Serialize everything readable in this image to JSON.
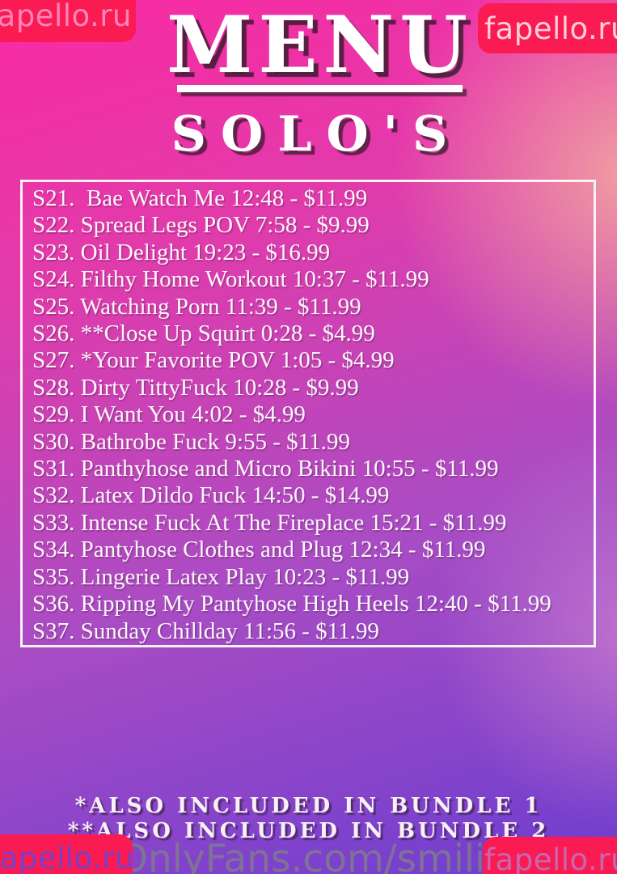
{
  "watermarks": {
    "badge_label": "fapello.ru",
    "bottom_center": "OnlyFans.com/smilingc"
  },
  "header": {
    "title": "MENU",
    "subtitle": "SOLO'S"
  },
  "menu": {
    "items": [
      "S21.  Bae Watch Me 12:48 - $11.99",
      "S22. Spread Legs POV 7:58 - $9.99",
      "S23. Oil Delight 19:23 - $16.99",
      "S24. Filthy Home Workout 10:37 - $11.99",
      "S25. Watching Porn 11:39 - $11.99",
      "S26. **Close Up Squirt 0:28 - $4.99",
      "S27. *Your Favorite POV 1:05 - $4.99",
      "S28. Dirty TittyFuck 10:28 - $9.99",
      "S29. I Want You 4:02 - $4.99",
      "S30. Bathrobe Fuck 9:55 - $11.99",
      "S31. Panthyhose and Micro Bikini 10:55 - $11.99",
      "S32. Latex Dildo Fuck 14:50 - $14.99",
      "S33. Intense Fuck At The Fireplace 15:21 - $11.99",
      "S34. Pantyhose Clothes and Plug 12:34 - $11.99",
      "S35. Lingerie Latex Play 10:23 - $11.99",
      "S36. Ripping My Pantyhose High Heels 12:40 - $11.99",
      "S37. Sunday Chillday 11:56 - $11.99"
    ]
  },
  "footnotes": {
    "line1": "*ALSO INCLUDED IN BUNDLE 1",
    "line2": "**ALSO INCLUDED IN BUNDLE 2"
  },
  "colors": {
    "badge_red": "#f91b52",
    "gradient_top_left_pink": "#fa2aa2",
    "gradient_right_rose": "#f2a3a0",
    "gradient_bottom_violet": "#6c3ecf",
    "text_white": "#ffffff",
    "watermark_gray": "#807e88"
  }
}
